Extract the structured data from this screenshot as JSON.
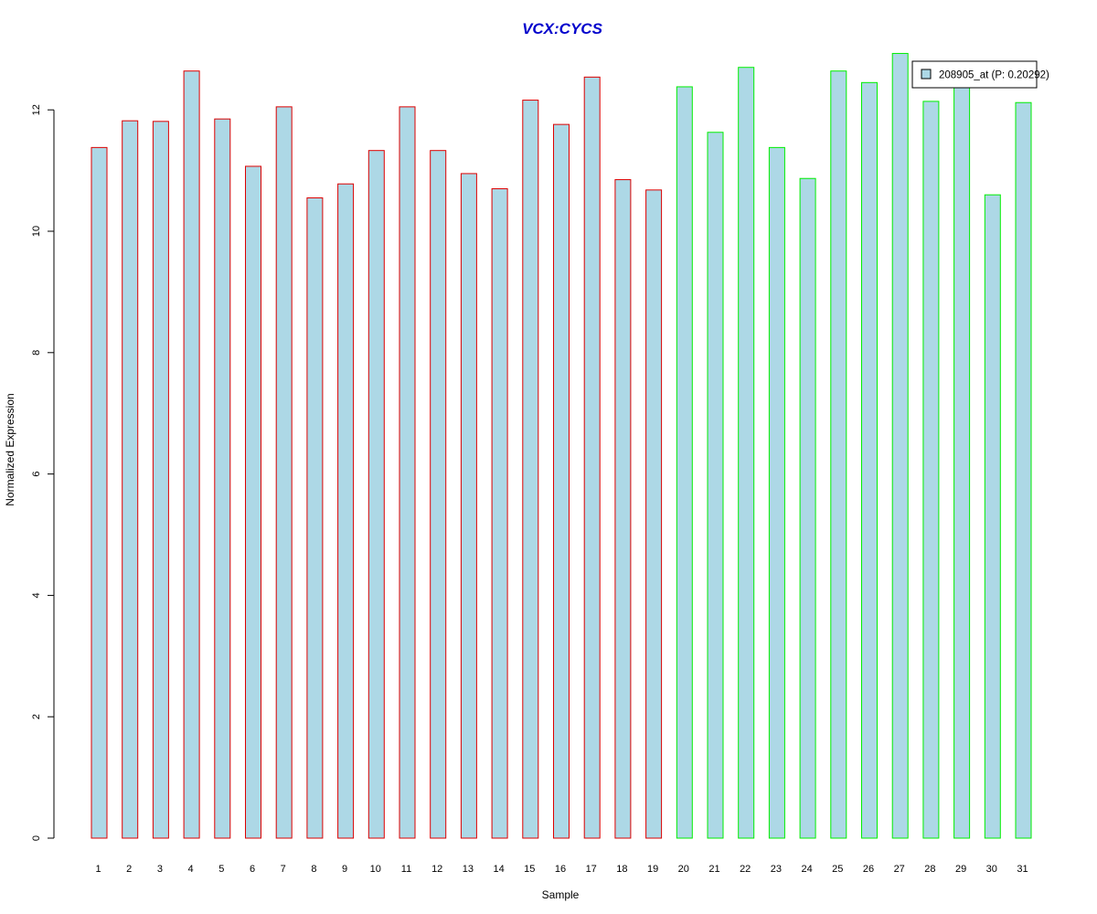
{
  "chart_data": {
    "type": "bar",
    "title": "VCX:CYCS",
    "xlabel": "Sample",
    "ylabel": "Normalized Expression",
    "categories": [
      "1",
      "2",
      "3",
      "4",
      "5",
      "6",
      "7",
      "8",
      "9",
      "10",
      "11",
      "12",
      "13",
      "14",
      "15",
      "16",
      "17",
      "18",
      "19",
      "20",
      "21",
      "22",
      "23",
      "24",
      "25",
      "26",
      "27",
      "28",
      "29",
      "30",
      "31"
    ],
    "series": [
      {
        "name": "208905_at (P: 0.20292)",
        "values": [
          11.38,
          11.82,
          11.81,
          12.64,
          11.85,
          11.07,
          12.05,
          10.55,
          10.78,
          11.33,
          12.05,
          11.33,
          10.95,
          10.7,
          12.16,
          11.76,
          12.54,
          10.85,
          10.68,
          12.38,
          11.63,
          12.7,
          11.38,
          10.87,
          12.64,
          12.45,
          12.93,
          12.14,
          12.4,
          10.6,
          12.12
        ]
      }
    ],
    "groups": [
      {
        "samples": "1-19",
        "border_color": "#dd0000"
      },
      {
        "samples": "20-31",
        "border_color": "#00ee00"
      }
    ],
    "group_split_index": 19,
    "bar_fill": "#add8e6",
    "title_color": "#0000cc",
    "yticks": [
      0,
      2,
      4,
      6,
      8,
      10,
      12
    ],
    "ylim": [
      0,
      12.93
    ],
    "legend_position": "top-right",
    "grid": false
  }
}
